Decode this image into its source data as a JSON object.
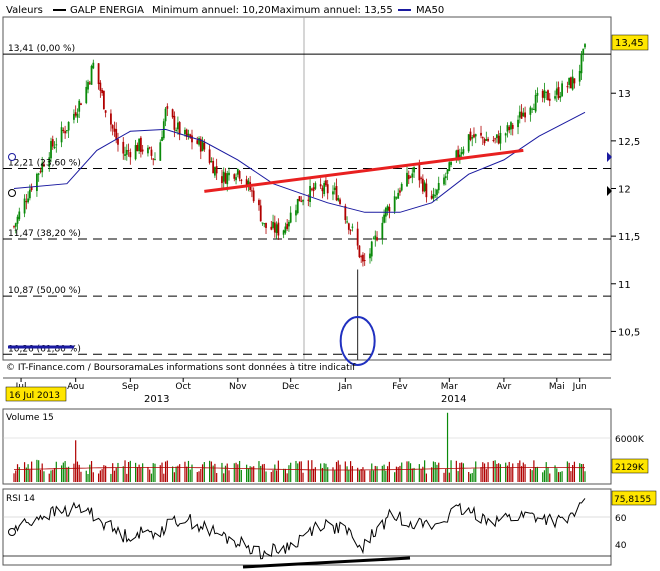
{
  "legend": {
    "valeurs_label": "Valeurs",
    "instrument": "GALP ENERGIA",
    "min_label": "Minimum annuel: 10,20",
    "max_label": "Maximum annuel: 13,55",
    "ma_label": "MA50"
  },
  "fib_levels": [
    {
      "label": "13,41 (0,00 %)",
      "value": 13.41
    },
    {
      "label": "12,21 (23,60 %)",
      "value": 12.21
    },
    {
      "label": "11,47 (38,20 %)",
      "value": 11.47
    },
    {
      "label": "10,87 (50,00 %)",
      "value": 10.87
    },
    {
      "label": "10,26 (61,80 %)",
      "value": 10.26
    }
  ],
  "last_price_label": "13,45",
  "source_note": "© IT-Finance.com / BoursoramaLes informations sont données à titre indicatif",
  "date_box": "16 Jul 2013",
  "volume_panel": {
    "title": "Volume 15",
    "tick_label": "6000K",
    "last_value_label": "2129K"
  },
  "rsi_panel": {
    "title": "RSI 14",
    "ticks": [
      "60",
      "40"
    ],
    "last_value_label": "75,8155"
  },
  "colors": {
    "up": "#0a8a0a",
    "down": "#b00000",
    "ma": "#1a1aa0",
    "trendline": "#e82020",
    "badge": "#ffe600"
  },
  "chart_data": {
    "type": "line",
    "price": {
      "ylim": [
        10.2,
        13.8
      ],
      "ticks": [
        10.5,
        11,
        11.5,
        12,
        12.5,
        13
      ],
      "tick_labels": [
        "10,5",
        "11",
        "11,5",
        "12",
        "12,5",
        "13"
      ],
      "x_months": [
        "Jul",
        "Aou",
        "Sep",
        "Oct",
        "Nov",
        "Dec",
        "Jan",
        "Fev",
        "Mar",
        "Avr",
        "Mai",
        "Jun"
      ],
      "x_years": [
        "2013",
        "2014"
      ],
      "close_path": [
        {
          "x": "2013-07-16",
          "y": 11.6
        },
        {
          "x": "2013-07-25",
          "y": 12.0
        },
        {
          "x": "2013-08-05",
          "y": 12.4
        },
        {
          "x": "2013-08-15",
          "y": 12.65
        },
        {
          "x": "2013-08-25",
          "y": 13.0
        },
        {
          "x": "2013-08-30",
          "y": 13.3
        },
        {
          "x": "2013-09-05",
          "y": 12.9
        },
        {
          "x": "2013-09-15",
          "y": 12.35
        },
        {
          "x": "2013-09-25",
          "y": 12.45
        },
        {
          "x": "2013-10-05",
          "y": 12.3
        },
        {
          "x": "2013-10-10",
          "y": 12.8
        },
        {
          "x": "2013-10-20",
          "y": 12.55
        },
        {
          "x": "2013-10-31",
          "y": 12.45
        },
        {
          "x": "2013-11-10",
          "y": 12.1
        },
        {
          "x": "2013-11-20",
          "y": 12.2
        },
        {
          "x": "2013-11-30",
          "y": 11.9
        },
        {
          "x": "2013-12-05",
          "y": 11.6
        },
        {
          "x": "2013-12-15",
          "y": 11.55
        },
        {
          "x": "2013-12-25",
          "y": 11.9
        },
        {
          "x": "2014-01-05",
          "y": 12.0
        },
        {
          "x": "2014-01-15",
          "y": 11.95
        },
        {
          "x": "2014-01-25",
          "y": 11.5
        },
        {
          "x": "2014-01-30",
          "y": 11.2
        },
        {
          "x": "2014-02-05",
          "y": 11.4
        },
        {
          "x": "2014-02-10",
          "y": 11.7
        },
        {
          "x": "2014-02-20",
          "y": 12.0
        },
        {
          "x": "2014-03-01",
          "y": 12.2
        },
        {
          "x": "2014-03-10",
          "y": 11.85
        },
        {
          "x": "2014-03-20",
          "y": 12.2
        },
        {
          "x": "2014-03-31",
          "y": 12.55
        },
        {
          "x": "2014-04-15",
          "y": 12.5
        },
        {
          "x": "2014-04-25",
          "y": 12.65
        },
        {
          "x": "2014-05-05",
          "y": 12.9
        },
        {
          "x": "2014-05-20",
          "y": 13.0
        },
        {
          "x": "2014-05-31",
          "y": 13.15
        },
        {
          "x": "2014-06-05",
          "y": 13.45
        }
      ],
      "ma50_path": [
        {
          "x": "2013-07-16",
          "y": 12.0
        },
        {
          "x": "2013-08-15",
          "y": 12.05
        },
        {
          "x": "2013-09-01",
          "y": 12.4
        },
        {
          "x": "2013-09-20",
          "y": 12.6
        },
        {
          "x": "2013-10-10",
          "y": 12.62
        },
        {
          "x": "2013-10-31",
          "y": 12.5
        },
        {
          "x": "2013-11-20",
          "y": 12.3
        },
        {
          "x": "2013-12-10",
          "y": 12.05
        },
        {
          "x": "2014-01-10",
          "y": 11.85
        },
        {
          "x": "2014-01-31",
          "y": 11.75
        },
        {
          "x": "2014-02-20",
          "y": 11.75
        },
        {
          "x": "2014-03-10",
          "y": 11.85
        },
        {
          "x": "2014-03-31",
          "y": 12.15
        },
        {
          "x": "2014-04-20",
          "y": 12.3
        },
        {
          "x": "2014-05-10",
          "y": 12.55
        },
        {
          "x": "2014-06-05",
          "y": 12.8
        }
      ],
      "trendline": [
        {
          "x": "2013-11-01",
          "y": 11.97
        },
        {
          "x": "2014-05-01",
          "y": 12.4
        }
      ],
      "spike_low": {
        "x": "2014-01-27",
        "y": 10.2
      },
      "annual_low": 10.2,
      "annual_high": 13.55
    },
    "volume": {
      "ylim": [
        0,
        8000
      ],
      "spikes": [
        {
          "x": "2013-08-20",
          "y": 4700
        },
        {
          "x": "2014-03-19",
          "y": 7800
        }
      ],
      "last": 2129
    },
    "rsi": {
      "ylim": [
        22,
        82
      ],
      "ticks": [
        60,
        40
      ],
      "last": 75.8155
    }
  }
}
